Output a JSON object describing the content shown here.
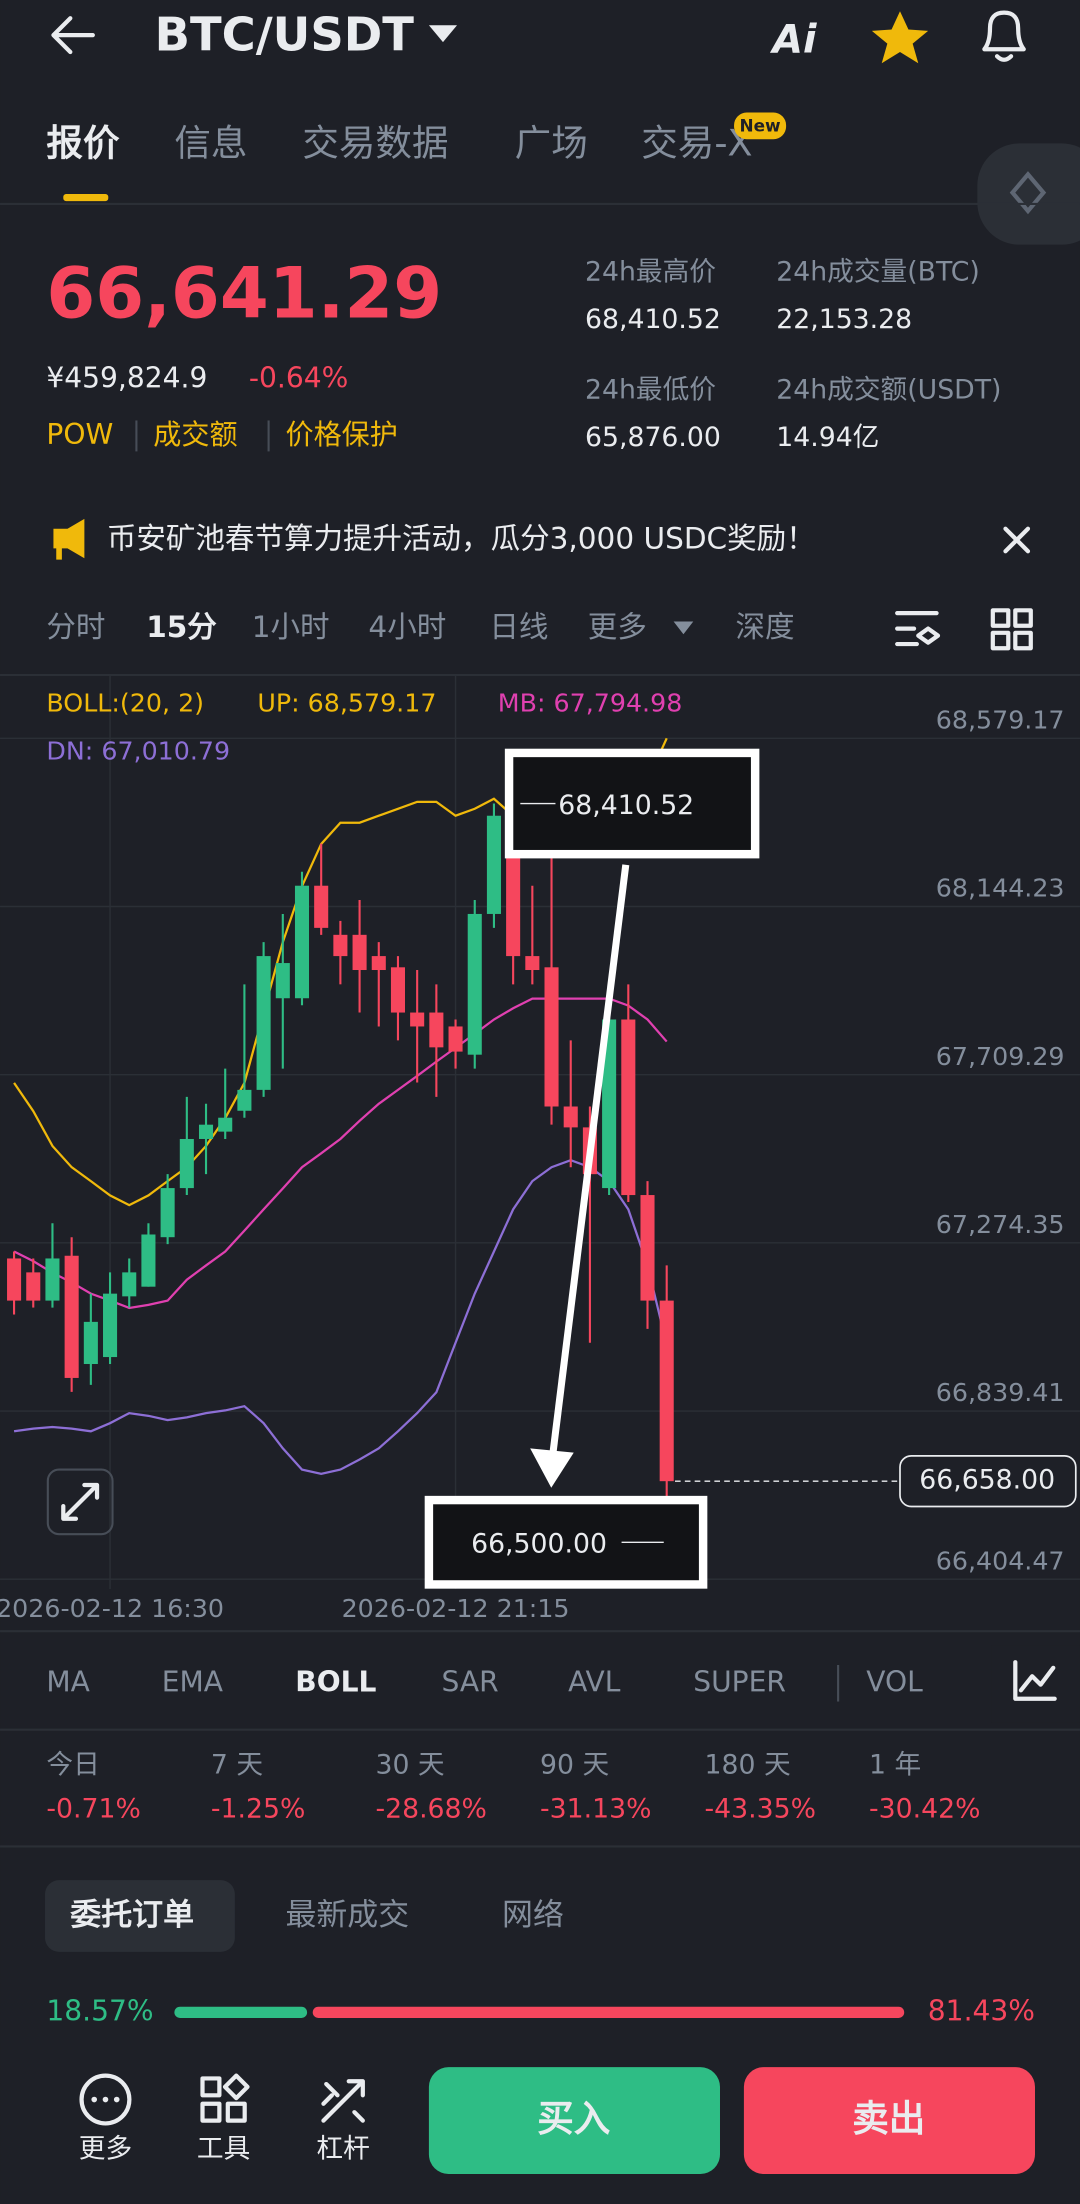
{
  "header": {
    "title": "BTC/USDT",
    "tabs": [
      "报价",
      "信息",
      "交易数据",
      "广场",
      "交易-X"
    ],
    "new_badge": "New"
  },
  "price": {
    "last": "66,641.29",
    "cny": "¥459,824.9",
    "change": "-0.64%",
    "tags": [
      "POW",
      "成交额",
      "价格保护"
    ],
    "stats": [
      {
        "label": "24h最高价",
        "value": "68,410.52"
      },
      {
        "label": "24h成交量(BTC)",
        "value": "22,153.28"
      },
      {
        "label": "24h最低价",
        "value": "65,876.00"
      },
      {
        "label": "24h成交额(USDT)",
        "value": "14.94亿"
      }
    ]
  },
  "banner": "币安矿池春节算力提升活动，瓜分3,000 USDC奖励！",
  "intervals": [
    "分时",
    "15分",
    "1小时",
    "4小时",
    "日线",
    "更多",
    "深度"
  ],
  "chart_data": {
    "type": "candlestick",
    "indicator_labels": {
      "boll": "BOLL:(20, 2)",
      "up": "UP: 68,579.17",
      "mb": "MB: 67,794.98",
      "dn": "DN: 67,010.79"
    },
    "categories": [
      null,
      null,
      null,
      null,
      null,
      "2026-02-12 16:30",
      null,
      null,
      null,
      null,
      null,
      null,
      null,
      null,
      null,
      null,
      null,
      null,
      null,
      null,
      null,
      null,
      null,
      "2026-02-12 21:15",
      null,
      null,
      null,
      null,
      null,
      null,
      null,
      null,
      null,
      null,
      null
    ],
    "candles": [
      {
        "open": 67234,
        "close": 67125,
        "high": 67252,
        "low": 67089
      },
      {
        "open": 67198,
        "close": 67125,
        "high": 67234,
        "low": 67107
      },
      {
        "open": 67125,
        "close": 67234,
        "high": 67325,
        "low": 67107
      },
      {
        "open": 67241,
        "close": 66925,
        "high": 67289,
        "low": 66889
      },
      {
        "open": 66961,
        "close": 67070,
        "high": 67143,
        "low": 66907
      },
      {
        "open": 66979,
        "close": 67143,
        "high": 67198,
        "low": 66961
      },
      {
        "open": 67136,
        "close": 67198,
        "high": 67234,
        "low": 67107
      },
      {
        "open": 67161,
        "close": 67296,
        "high": 67325,
        "low": 67161
      },
      {
        "open": 67289,
        "close": 67416,
        "high": 67452,
        "low": 67271
      },
      {
        "open": 67416,
        "close": 67543,
        "high": 67652,
        "low": 67398
      },
      {
        "open": 67543,
        "close": 67580,
        "high": 67634,
        "low": 67452
      },
      {
        "open": 67562,
        "close": 67598,
        "high": 67725,
        "low": 67543
      },
      {
        "open": 67616,
        "close": 67670,
        "high": 67943,
        "low": 67598
      },
      {
        "open": 67670,
        "close": 68016,
        "high": 68052,
        "low": 67652
      },
      {
        "open": 67907,
        "close": 67998,
        "high": 68125,
        "low": 67725
      },
      {
        "open": 67907,
        "close": 68198,
        "high": 68234,
        "low": 67889
      },
      {
        "open": 68198,
        "close": 68089,
        "high": 68307,
        "low": 68071
      },
      {
        "open": 68071,
        "close": 68016,
        "high": 68107,
        "low": 67943
      },
      {
        "open": 68071,
        "close": 67980,
        "high": 68161,
        "low": 67870
      },
      {
        "open": 68016,
        "close": 67980,
        "high": 68052,
        "low": 67834
      },
      {
        "open": 67987,
        "close": 67870,
        "high": 68016,
        "low": 67798
      },
      {
        "open": 67870,
        "close": 67834,
        "high": 67980,
        "low": 67689
      },
      {
        "open": 67870,
        "close": 67780,
        "high": 67943,
        "low": 67652
      },
      {
        "open": 67834,
        "close": 67769,
        "high": 67852,
        "low": 67725
      },
      {
        "open": 67761,
        "close": 68125,
        "high": 68161,
        "low": 67725
      },
      {
        "open": 68125,
        "close": 68379,
        "high": 68410.52,
        "low": 68089
      },
      {
        "open": 68361,
        "close": 68016,
        "high": 68398,
        "low": 67943
      },
      {
        "open": 68016,
        "close": 67980,
        "high": 68198,
        "low": 67943
      },
      {
        "open": 67987,
        "close": 67627,
        "high": 68307,
        "low": 67580
      },
      {
        "open": 67627,
        "close": 67573,
        "high": 67798,
        "low": 67470
      },
      {
        "open": 67573,
        "close": 67452,
        "high": 67627,
        "low": 67016
      },
      {
        "open": 67416,
        "close": 67852,
        "high": 67870,
        "low": 67398
      },
      {
        "open": 67852,
        "close": 67398,
        "high": 67943,
        "low": 67380
      },
      {
        "open": 67398,
        "close": 67125,
        "high": 67434,
        "low": 67052
      },
      {
        "open": 67125,
        "close": 66658,
        "high": 67216,
        "low": 66500
      }
    ],
    "up_color": "#2ebd85",
    "down_color": "#f6465d",
    "series": [
      {
        "name": "UP",
        "color": "#f0b90b",
        "values": [
          67688,
          67615,
          67525,
          67470,
          67434,
          67397,
          67372,
          67397,
          67434,
          67470,
          67525,
          67597,
          67688,
          67870,
          68052,
          68197,
          68306,
          68361,
          68361,
          68379,
          68397,
          68415,
          68415,
          68379,
          68397,
          68423,
          68379,
          68343,
          68343,
          68343,
          68361,
          68361,
          68397,
          68470,
          68579.17
        ]
      },
      {
        "name": "MB",
        "color": "#e040b0",
        "values": [
          67252,
          67227,
          67197,
          67172,
          67143,
          67125,
          67106,
          67114,
          67125,
          67179,
          67216,
          67252,
          67306,
          67361,
          67415,
          67470,
          67506,
          67543,
          67590,
          67634,
          67670,
          67706,
          67743,
          67779,
          67815,
          67852,
          67881,
          67906,
          67906,
          67906,
          67906,
          67906,
          67888,
          67852,
          67794.98
        ]
      },
      {
        "name": "DN",
        "color": "#8d6fd6",
        "values": [
          66787,
          66794,
          66798,
          66794,
          66787,
          66808,
          66834,
          66827,
          66816,
          66823,
          66834,
          66841,
          66852,
          66808,
          66743,
          66688,
          66677,
          66688,
          66714,
          66743,
          66787,
          66834,
          66888,
          67016,
          67143,
          67252,
          67361,
          67434,
          67470,
          67488,
          67470,
          67434,
          67361,
          67216,
          67010.79
        ]
      }
    ],
    "ylim": [
      66379,
      68743
    ],
    "yticks": [
      {
        "value": 68579.17,
        "label": "68,579.17"
      },
      {
        "value": 68144.23,
        "label": "68,144.23"
      },
      {
        "value": 67709.29,
        "label": "67,709.29"
      },
      {
        "value": 67274.35,
        "label": "67,274.35"
      },
      {
        "value": 66839.41,
        "label": "66,839.41"
      },
      {
        "value": 66404.47,
        "label": "66,404.47"
      }
    ],
    "grid": true,
    "last_price": {
      "value": 66658,
      "label": "66,658.00"
    },
    "high_marker": {
      "value": 68410.52,
      "label": "68,410.52"
    },
    "low_marker": {
      "value": 66500,
      "label": "66,500.00"
    }
  },
  "indicators": [
    "MA",
    "EMA",
    "BOLL",
    "SAR",
    "AVL",
    "SUPER",
    "VOL"
  ],
  "performance": [
    {
      "period": "今日",
      "change": "-0.71%"
    },
    {
      "period": "7 天",
      "change": "-1.25%"
    },
    {
      "period": "30 天",
      "change": "-28.68%"
    },
    {
      "period": "90 天",
      "change": "-31.13%"
    },
    {
      "period": "180 天",
      "change": "-43.35%"
    },
    {
      "period": "1 年",
      "change": "-30.42%"
    }
  ],
  "order_tabs": [
    "委托订单",
    "最新成交",
    "网络"
  ],
  "ratio": {
    "values": [
      18.57,
      81.43
    ],
    "value_labels": [
      "18.57%",
      "81.43%"
    ]
  },
  "bottom_nav": [
    "更多",
    "工具",
    "杠杆"
  ],
  "actions": [
    "买入",
    "卖出"
  ]
}
